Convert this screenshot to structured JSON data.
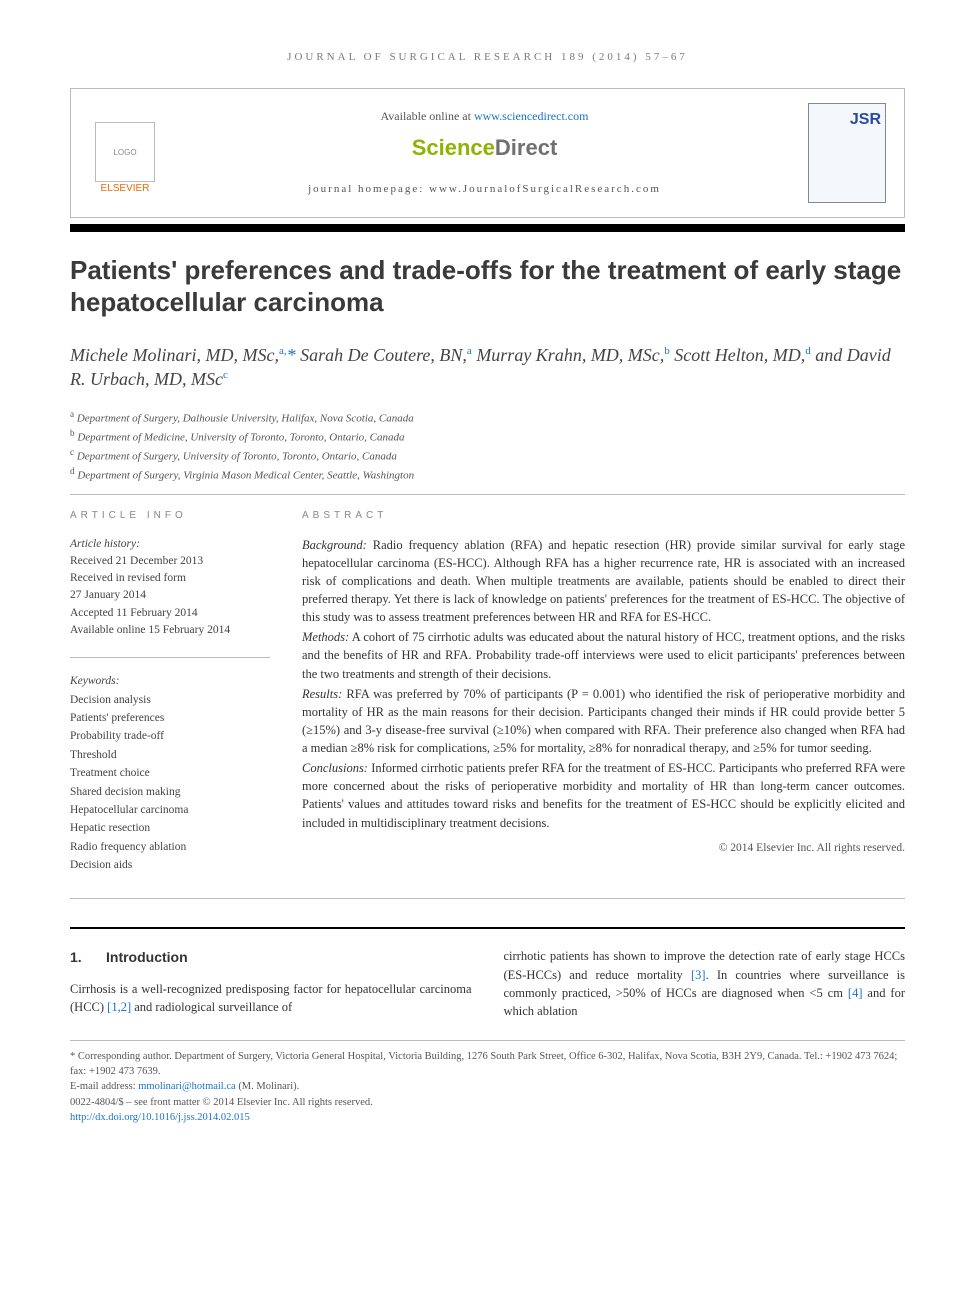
{
  "running_head": "JOURNAL OF SURGICAL RESEARCH 189 (2014) 57–67",
  "header": {
    "available_prefix": "Available online at ",
    "available_link": "www.sciencedirect.com",
    "sd_a": "Science",
    "sd_b": "Direct",
    "homepage_label": "journal homepage: www.JournalofSurgicalResearch.com",
    "elsevier": "ELSEVIER",
    "jsr": "JSR"
  },
  "title": "Patients' preferences and trade-offs for the treatment of early stage hepatocellular carcinoma",
  "authors_html": "Michele Molinari, MD, MSc,<sup>a,</sup><span class='ast'>*</span> Sarah De Coutere, BN,<sup>a</sup> Murray Krahn, MD, MSc,<sup>b</sup> Scott Helton, MD,<sup>d</sup> and David R. Urbach, MD, MSc<sup>c</sup>",
  "affiliations": [
    "a Department of Surgery, Dalhousie University, Halifax, Nova Scotia, Canada",
    "b Department of Medicine, University of Toronto, Toronto, Ontario, Canada",
    "c Department of Surgery, University of Toronto, Toronto, Ontario, Canada",
    "d Department of Surgery, Virginia Mason Medical Center, Seattle, Washington"
  ],
  "article_info": {
    "heading": "ARTICLE INFO",
    "history_label": "Article history:",
    "history": [
      "Received 21 December 2013",
      "Received in revised form",
      "27 January 2014",
      "Accepted 11 February 2014",
      "Available online 15 February 2014"
    ],
    "keywords_label": "Keywords:",
    "keywords": [
      "Decision analysis",
      "Patients' preferences",
      "Probability trade-off",
      "Threshold",
      "Treatment choice",
      "Shared decision making",
      "Hepatocellular carcinoma",
      "Hepatic resection",
      "Radio frequency ablation",
      "Decision aids"
    ]
  },
  "abstract": {
    "heading": "ABSTRACT",
    "sections": [
      {
        "label": "Background:",
        "text": "Radio frequency ablation (RFA) and hepatic resection (HR) provide similar survival for early stage hepatocellular carcinoma (ES-HCC). Although RFA has a higher recurrence rate, HR is associated with an increased risk of complications and death. When multiple treatments are available, patients should be enabled to direct their preferred therapy. Yet there is lack of knowledge on patients' preferences for the treatment of ES-HCC. The objective of this study was to assess treatment preferences between HR and RFA for ES-HCC."
      },
      {
        "label": "Methods:",
        "text": "A cohort of 75 cirrhotic adults was educated about the natural history of HCC, treatment options, and the risks and the benefits of HR and RFA. Probability trade-off interviews were used to elicit participants' preferences between the two treatments and strength of their decisions."
      },
      {
        "label": "Results:",
        "text": "RFA was preferred by 70% of participants (P = 0.001) who identified the risk of perioperative morbidity and mortality of HR as the main reasons for their decision. Participants changed their minds if HR could provide better 5 (≥15%) and 3-y disease-free survival (≥10%) when compared with RFA. Their preference also changed when RFA had a median ≥8% risk for complications, ≥5% for mortality, ≥8% for nonradical therapy, and ≥5% for tumor seeding."
      },
      {
        "label": "Conclusions:",
        "text": "Informed cirrhotic patients prefer RFA for the treatment of ES-HCC. Participants who preferred RFA were more concerned about the risks of perioperative morbidity and mortality of HR than long-term cancer outcomes. Patients' values and attitudes toward risks and benefits for the treatment of ES-HCC should be explicitly elicited and included in multidisciplinary treatment decisions."
      }
    ],
    "copyright": "© 2014 Elsevier Inc. All rights reserved."
  },
  "intro": {
    "num": "1.",
    "heading": "Introduction",
    "left": "Cirrhosis is a well-recognized predisposing factor for hepatocellular carcinoma (HCC) [1,2] and radiological surveillance of",
    "right": "cirrhotic patients has shown to improve the detection rate of early stage HCCs (ES-HCCs) and reduce mortality [3]. In countries where surveillance is commonly practiced, >50% of HCCs are diagnosed when <5 cm [4] and for which ablation"
  },
  "footnotes": {
    "corr": "* Corresponding author. Department of Surgery, Victoria General Hospital, Victoria Building, 1276 South Park Street, Office 6-302, Halifax, Nova Scotia, B3H 2Y9, Canada. Tel.: +1902 473 7624; fax: +1902 473 7639.",
    "email_label": "E-mail address: ",
    "email": "mmolinari@hotmail.ca",
    "email_suffix": " (M. Molinari).",
    "front": "0022-4804/$ – see front matter © 2014 Elsevier Inc. All rights reserved.",
    "doi": "http://dx.doi.org/10.1016/j.jss.2014.02.015"
  },
  "colors": {
    "accent_orange": "#ed6c00",
    "link_blue": "#1a73cc",
    "sd_green": "#8cb400",
    "sd_grey": "#707070",
    "rule_black": "#000000",
    "text": "#333333"
  }
}
